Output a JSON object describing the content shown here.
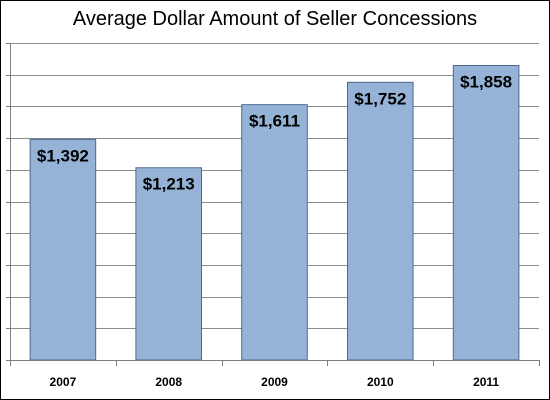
{
  "chart_data": {
    "type": "bar",
    "title": "Average Dollar Amount of Seller Concessions",
    "xlabel": "",
    "ylabel": "",
    "categories": [
      "2007",
      "2008",
      "2009",
      "2010",
      "2011"
    ],
    "values": [
      1392,
      1213,
      1611,
      1752,
      1858
    ],
    "data_labels": [
      "$1,392",
      "$1,213",
      "$1,611",
      "$1,752",
      "$1,858"
    ],
    "ylim": [
      0,
      2000
    ],
    "ytick_step": 200,
    "y_tick_labels_shown": false,
    "grid": true,
    "legend": "none",
    "colors": {
      "bar_fill": "#95b3d7",
      "bar_stroke": "#4f6a8f",
      "gridline": "#8c8c8c",
      "axis": "#7f7f7f"
    }
  }
}
